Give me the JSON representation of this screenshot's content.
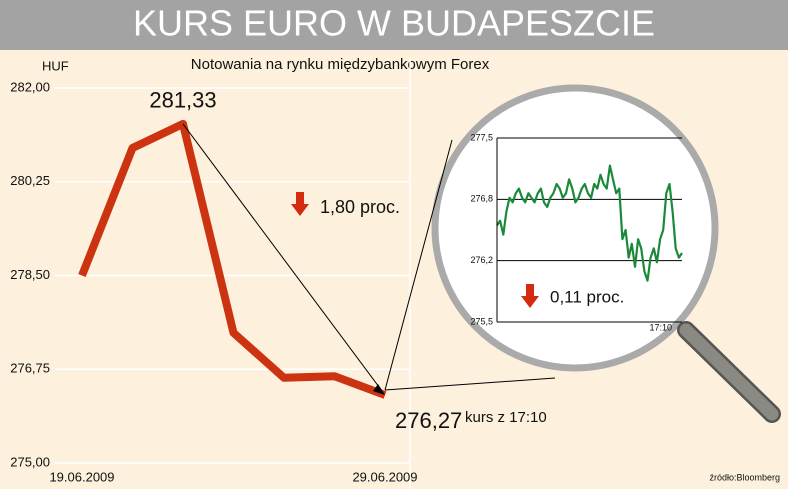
{
  "chart_data": [
    {
      "type": "line",
      "title": "KURS EURO W BUDAPESZCIE",
      "subtitle": "Notowania na rynku międzybankowym Forex",
      "y_label": "HUF",
      "categories": [
        "19.06.2009",
        null,
        null,
        null,
        null,
        null,
        "29.06.2009"
      ],
      "values": [
        278.5,
        280.88,
        281.33,
        277.43,
        276.59,
        276.62,
        276.27
      ],
      "value_labels": [
        null,
        null,
        "281,33",
        null,
        null,
        null,
        "276,27"
      ],
      "color": "#cc3311",
      "ylim": [
        275,
        282
      ],
      "yticks": [
        {
          "value": 275,
          "label": "275,00"
        },
        {
          "value": 276.75,
          "label": "276,75"
        },
        {
          "value": 278.5,
          "label": "278,50"
        },
        {
          "value": 280.25,
          "label": "280,25"
        },
        {
          "value": 282,
          "label": "282,00"
        }
      ],
      "grid": true,
      "annotations": [
        "kurs z 17:10",
        "1,80 proc."
      ],
      "source": "źródło:Bloomberg"
    },
    {
      "type": "line",
      "categories": [
        null,
        null,
        null,
        null,
        null,
        null,
        null,
        null,
        null,
        null,
        null,
        null,
        null,
        null,
        null,
        null,
        null,
        null,
        null,
        null,
        null,
        null,
        null,
        null,
        null,
        null,
        null,
        null,
        null,
        null,
        null,
        null,
        null,
        null,
        null,
        null,
        null,
        null,
        null,
        null,
        null,
        null,
        null,
        null,
        null,
        null,
        null,
        null,
        null,
        null,
        null,
        null,
        null,
        null,
        null,
        null,
        null,
        null,
        null,
        "17:10"
      ],
      "values": [
        276.55,
        276.6,
        276.45,
        276.7,
        276.85,
        276.8,
        276.9,
        276.95,
        276.85,
        276.8,
        276.9,
        276.85,
        276.8,
        276.9,
        276.95,
        276.8,
        276.75,
        276.85,
        276.9,
        277.0,
        276.95,
        276.85,
        276.9,
        277.05,
        276.95,
        276.8,
        276.85,
        276.95,
        277.0,
        276.9,
        276.85,
        277.0,
        276.95,
        277.1,
        277.0,
        276.95,
        277.2,
        277.05,
        276.9,
        276.95,
        276.4,
        276.5,
        276.2,
        276.35,
        276.1,
        276.4,
        276.3,
        276.05,
        275.95,
        276.2,
        276.3,
        276.15,
        276.4,
        276.5,
        276.9,
        277.0,
        276.7,
        276.3,
        276.2,
        276.25
      ],
      "color": "#1a8a3a",
      "ylim": [
        275.5,
        277.5
      ],
      "yticks": [
        {
          "value": 275.5,
          "label": "275,5"
        },
        {
          "value": 276.1667,
          "label": "276,2"
        },
        {
          "value": 276.8333,
          "label": "276,8"
        },
        {
          "value": 277.5,
          "label": "277,5"
        }
      ],
      "grid": true,
      "annotations": [
        "0,11 proc."
      ]
    }
  ]
}
